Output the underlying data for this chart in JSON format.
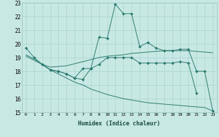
{
  "xlabel": "Humidex (Indice chaleur)",
  "ylabel": "",
  "xlim": [
    -0.5,
    23.5
  ],
  "ylim": [
    15,
    23
  ],
  "yticks": [
    15,
    16,
    17,
    18,
    19,
    20,
    21,
    22,
    23
  ],
  "xticks": [
    0,
    1,
    2,
    3,
    4,
    5,
    6,
    7,
    8,
    9,
    10,
    11,
    12,
    13,
    14,
    15,
    16,
    17,
    18,
    19,
    20,
    21,
    22,
    23
  ],
  "bg_color": "#c8e8e4",
  "grid_color": "#a8d4ce",
  "line_color": "#2a7a6e",
  "lines": [
    {
      "x": [
        0,
        1,
        2,
        3,
        4,
        5,
        6,
        7,
        8,
        9,
        10,
        11,
        12,
        13,
        14,
        15,
        16,
        17,
        18,
        19,
        20,
        21,
        22,
        23
      ],
      "y": [
        19.7,
        19.0,
        18.5,
        18.1,
        18.0,
        17.8,
        17.5,
        18.2,
        18.2,
        20.5,
        20.4,
        22.9,
        22.2,
        22.2,
        19.8,
        20.1,
        19.7,
        19.5,
        19.5,
        19.6,
        19.6,
        18.0,
        18.0,
        15.1
      ],
      "marker": "D",
      "markersize": 2.0,
      "has_markers": true
    },
    {
      "x": [
        0,
        1,
        2,
        3,
        4,
        5,
        6,
        7,
        8,
        9,
        10,
        11,
        12,
        13,
        14,
        15,
        16,
        17,
        18,
        19,
        20,
        21,
        22,
        23
      ],
      "y": [
        19.1,
        18.8,
        18.5,
        18.3,
        18.35,
        18.4,
        18.55,
        18.7,
        18.85,
        19.0,
        19.1,
        19.15,
        19.2,
        19.3,
        19.35,
        19.4,
        19.45,
        19.5,
        19.5,
        19.5,
        19.5,
        19.45,
        19.4,
        19.35
      ],
      "marker": null,
      "markersize": 0,
      "has_markers": false
    },
    {
      "x": [
        0,
        1,
        2,
        3,
        4,
        5,
        6,
        7,
        8,
        9,
        10,
        11,
        12,
        13,
        14,
        15,
        16,
        17,
        18,
        19,
        20,
        21,
        22,
        23
      ],
      "y": [
        19.2,
        18.9,
        18.5,
        18.1,
        17.8,
        17.5,
        17.2,
        17.0,
        16.7,
        16.5,
        16.3,
        16.15,
        16.0,
        15.9,
        15.8,
        15.7,
        15.65,
        15.6,
        15.55,
        15.5,
        15.45,
        15.4,
        15.35,
        15.1
      ],
      "marker": null,
      "markersize": 0,
      "has_markers": false
    },
    {
      "x": [
        2,
        3,
        4,
        5,
        6,
        7,
        8,
        9,
        10,
        11,
        12,
        13,
        14,
        15,
        16,
        17,
        18,
        19,
        20,
        21
      ],
      "y": [
        18.5,
        18.1,
        18.0,
        17.8,
        17.5,
        17.4,
        18.2,
        18.5,
        19.0,
        19.0,
        19.0,
        19.0,
        18.6,
        18.6,
        18.6,
        18.6,
        18.6,
        18.7,
        18.6,
        16.4
      ],
      "marker": "D",
      "markersize": 2.0,
      "has_markers": true
    }
  ]
}
